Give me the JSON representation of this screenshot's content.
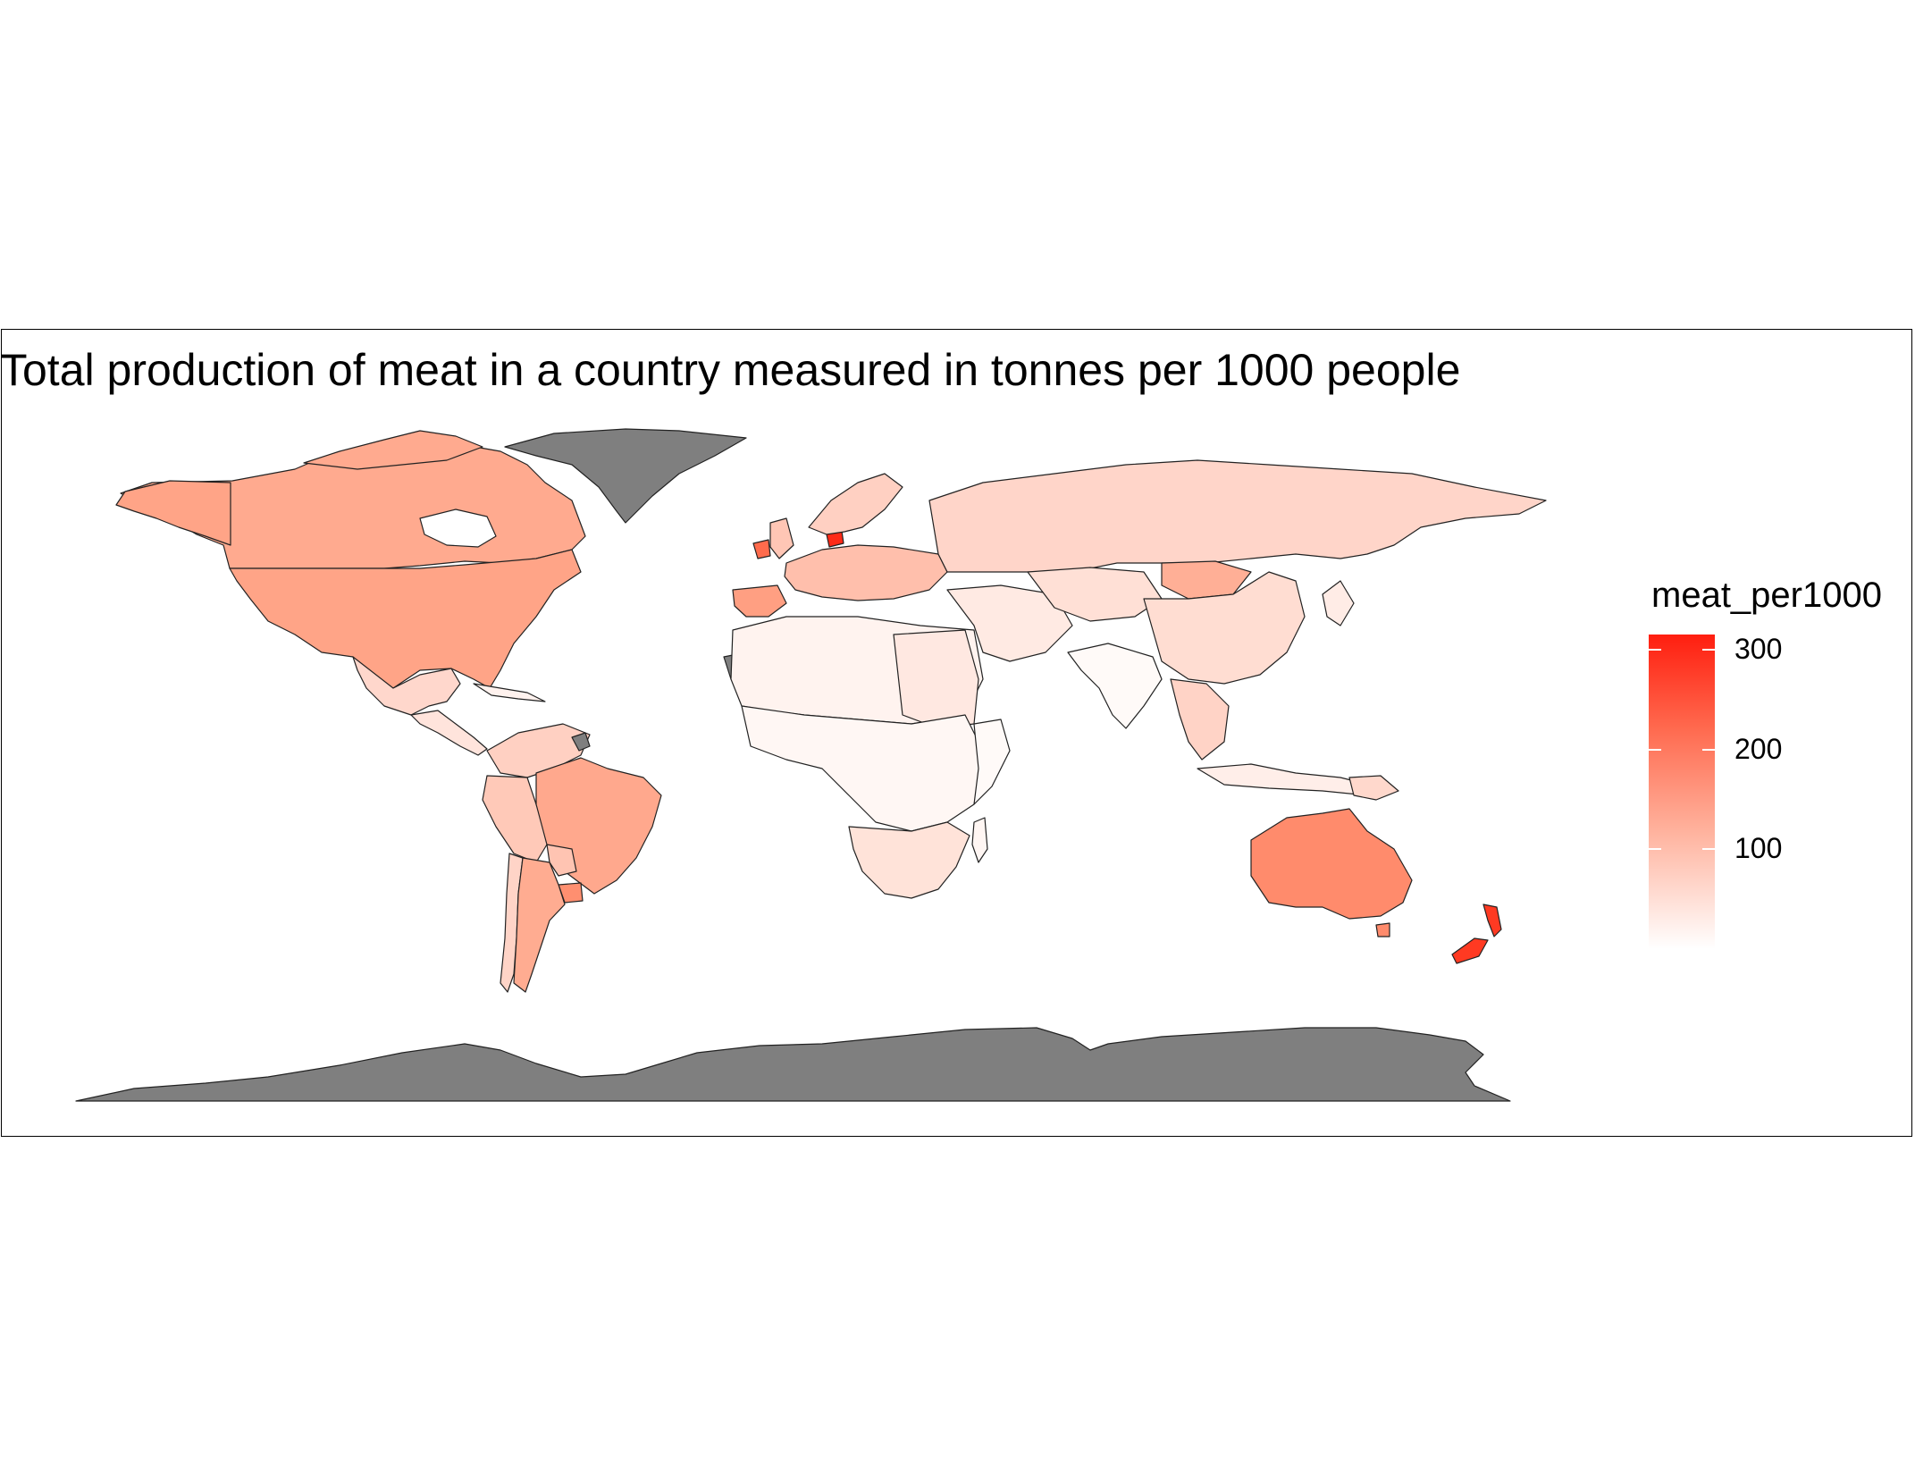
{
  "title": "Total production of meat in a country measured in tonnes per 1000 people",
  "legend": {
    "title": "meat_per1000",
    "ticks": [
      {
        "label": "300",
        "value": 300
      },
      {
        "label": "200",
        "value": 200
      },
      {
        "label": "100",
        "value": 100
      }
    ],
    "min": 0,
    "max": 315,
    "colors": {
      "high": "#ff1e0f",
      "mid": "#ff8a70",
      "low": "#ffffff",
      "missing": "#7f7f7f"
    }
  },
  "regions": [
    {
      "name": "Canada",
      "value": 120
    },
    {
      "name": "United States",
      "value": 135
    },
    {
      "name": "Mexico",
      "value": 55
    },
    {
      "name": "Greenland",
      "value": null
    },
    {
      "name": "Brazil",
      "value": 125
    },
    {
      "name": "Argentina",
      "value": 115
    },
    {
      "name": "Uruguay",
      "value": 160
    },
    {
      "name": "Russia",
      "value": 65
    },
    {
      "name": "China",
      "value": 60
    },
    {
      "name": "Mongolia",
      "value": 120
    },
    {
      "name": "Australia",
      "value": 170
    },
    {
      "name": "New Zealand",
      "value": 290
    },
    {
      "name": "Denmark",
      "value": 310
    },
    {
      "name": "Ireland",
      "value": 230
    },
    {
      "name": "Spain",
      "value": 145
    },
    {
      "name": "Antarctica",
      "value": null
    }
  ]
}
